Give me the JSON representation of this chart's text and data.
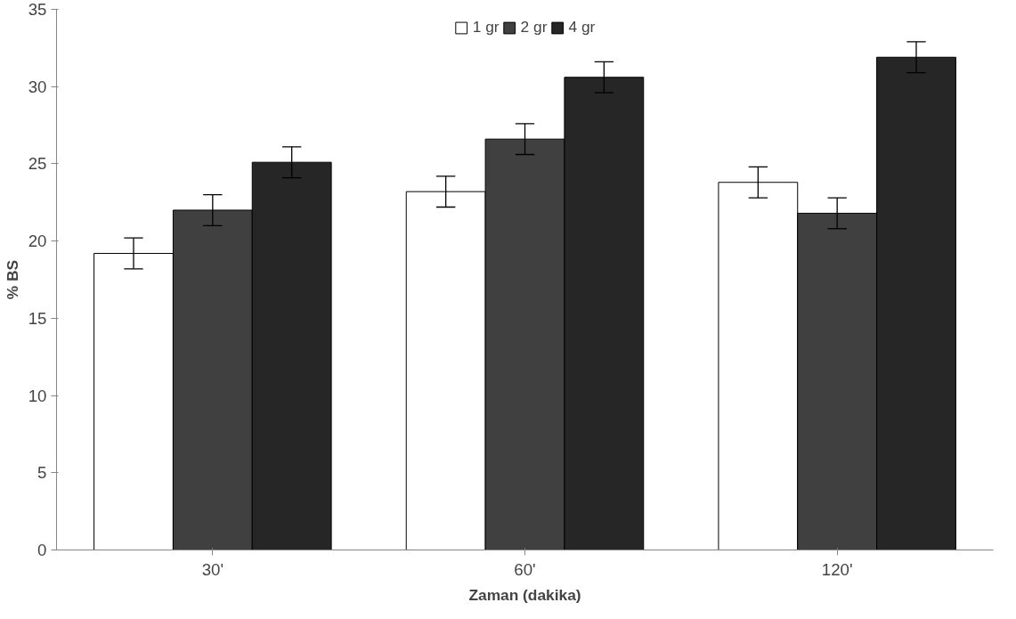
{
  "chart_data": {
    "type": "bar",
    "xlabel": "Zaman (dakika)",
    "ylabel": "% BS",
    "categories": [
      "30'",
      "60'",
      "120'"
    ],
    "series": [
      {
        "name": "1 gr",
        "color": "#ffffff",
        "values": [
          19.2,
          23.2,
          23.8
        ],
        "errors": [
          1.0,
          1.0,
          1.0
        ]
      },
      {
        "name": "2 gr",
        "color": "#404040",
        "values": [
          22.0,
          26.6,
          21.8
        ],
        "errors": [
          1.0,
          1.0,
          1.0
        ]
      },
      {
        "name": "4 gr",
        "color": "#262626",
        "values": [
          25.1,
          30.6,
          31.9
        ],
        "errors": [
          1.0,
          1.0,
          1.0
        ]
      }
    ],
    "ylim": [
      0,
      35
    ],
    "yticks": [
      0,
      5,
      10,
      15,
      20,
      25,
      30,
      35
    ],
    "grid": false,
    "legend": "top"
  }
}
